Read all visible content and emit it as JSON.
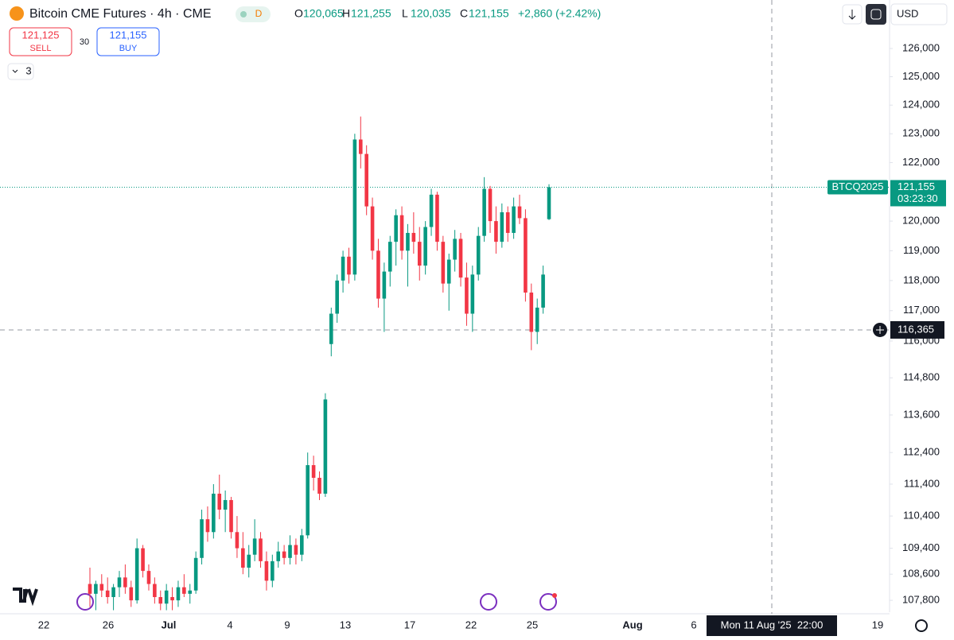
{
  "header": {
    "title": "Bitcoin CME Futures · 4h · CME",
    "badge": "D",
    "ohlc": [
      {
        "key": "O",
        "label": "120,065"
      },
      {
        "key": "H",
        "label": "121,255"
      },
      {
        "key": "L",
        "label": "120,035"
      },
      {
        "key": "C",
        "label": "121,155"
      }
    ],
    "change": "+2,860 (+2.42%)"
  },
  "trade": {
    "sell_price": "121,125",
    "sell": "SELL",
    "spread": "30",
    "buy_price": "121,155",
    "buy": "BUY",
    "indicators": "3"
  },
  "toolbar": {
    "currency": "USD"
  },
  "chart_data": {
    "type": "candlestick",
    "log": true,
    "ylim": [
      107440,
      127740
    ],
    "yticks": [
      {
        "value": 126000,
        "label": "126,000"
      },
      {
        "value": 125000,
        "label": "125,000"
      },
      {
        "value": 124000,
        "label": "124,000"
      },
      {
        "value": 123000,
        "label": "123,000"
      },
      {
        "value": 122000,
        "label": "122,000"
      },
      {
        "value": 120000,
        "label": "120,000"
      },
      {
        "value": 119000,
        "label": "119,000"
      },
      {
        "value": 118000,
        "label": "118,000"
      },
      {
        "value": 117000,
        "label": "117,000"
      },
      {
        "value": 116000,
        "label": "116,000"
      },
      {
        "value": 114800,
        "label": "114,800"
      },
      {
        "value": 113600,
        "label": "113,600"
      },
      {
        "value": 112400,
        "label": "112,400"
      },
      {
        "value": 111400,
        "label": "111,400"
      },
      {
        "value": 110400,
        "label": "110,400"
      },
      {
        "value": 109400,
        "label": "109,400"
      },
      {
        "value": 108600,
        "label": "108,600"
      },
      {
        "value": 107800,
        "label": "107,800"
      }
    ],
    "xticks": [
      "22",
      "26",
      "Jul",
      "4",
      "9",
      "13",
      "17",
      "22",
      "25",
      "Aug",
      "6",
      "19"
    ],
    "up_color": "#089981",
    "down_color": "#f23645",
    "candles": [
      [
        108300,
        108800,
        107600,
        108000
      ],
      [
        108000,
        108400,
        107500,
        108300
      ],
      [
        108300,
        108600,
        107900,
        108100
      ],
      [
        108100,
        108500,
        107700,
        107900
      ],
      [
        107900,
        108300,
        107500,
        108200
      ],
      [
        108200,
        108700,
        107900,
        108500
      ],
      [
        108500,
        108900,
        108000,
        108200
      ],
      [
        108200,
        108400,
        107600,
        107800
      ],
      [
        107800,
        109700,
        107700,
        109400
      ],
      [
        109400,
        109500,
        108500,
        108700
      ],
      [
        108700,
        108900,
        108100,
        108300
      ],
      [
        108300,
        108500,
        107700,
        107900
      ],
      [
        107900,
        108100,
        107500,
        107700
      ],
      [
        107700,
        108300,
        107500,
        108100
      ],
      [
        107900,
        108200,
        107500,
        107800
      ],
      [
        107800,
        108400,
        107600,
        108200
      ],
      [
        108200,
        108600,
        107900,
        108000
      ],
      [
        108000,
        108300,
        107700,
        108100
      ],
      [
        108100,
        109300,
        108000,
        109100
      ],
      [
        109100,
        110600,
        108900,
        110300
      ],
      [
        110300,
        110700,
        109600,
        109900
      ],
      [
        109900,
        111400,
        109700,
        111100
      ],
      [
        111100,
        111700,
        110300,
        110600
      ],
      [
        110600,
        111200,
        109900,
        110900
      ],
      [
        110900,
        111000,
        109700,
        109900
      ],
      [
        109900,
        110400,
        109100,
        109400
      ],
      [
        109400,
        109900,
        108600,
        108800
      ],
      [
        108800,
        109500,
        108500,
        109200
      ],
      [
        109200,
        110300,
        109000,
        109700
      ],
      [
        109700,
        109900,
        108800,
        109000
      ],
      [
        109000,
        109300,
        108100,
        108400
      ],
      [
        108400,
        109200,
        108200,
        109000
      ],
      [
        109000,
        109600,
        108800,
        109300
      ],
      [
        109300,
        109500,
        108900,
        109100
      ],
      [
        109100,
        109800,
        108900,
        109500
      ],
      [
        109500,
        109700,
        108900,
        109200
      ],
      [
        109200,
        110000,
        109000,
        109800
      ],
      [
        109800,
        112400,
        109700,
        112000
      ],
      [
        112000,
        112300,
        111200,
        111600
      ],
      [
        111600,
        111800,
        110900,
        111100
      ],
      [
        111100,
        114300,
        111000,
        114100
      ],
      [
        115900,
        117100,
        115500,
        116900
      ],
      [
        116900,
        118200,
        116600,
        118000
      ],
      [
        118000,
        119000,
        117600,
        118800
      ],
      [
        118800,
        119100,
        117900,
        118200
      ],
      [
        118200,
        123000,
        118000,
        122800
      ],
      [
        122800,
        123600,
        121800,
        122300
      ],
      [
        122300,
        122600,
        120200,
        120500
      ],
      [
        120500,
        120800,
        118700,
        119000
      ],
      [
        119000,
        119400,
        117100,
        117400
      ],
      [
        117400,
        118600,
        116300,
        118300
      ],
      [
        118300,
        119500,
        117800,
        119300
      ],
      [
        119300,
        120400,
        118500,
        120200
      ],
      [
        120200,
        120500,
        118700,
        119000
      ],
      [
        119000,
        119900,
        117800,
        119600
      ],
      [
        119600,
        120300,
        118900,
        119300
      ],
      [
        119300,
        119800,
        118000,
        118500
      ],
      [
        118500,
        120000,
        118200,
        119800
      ],
      [
        119800,
        121100,
        119500,
        120900
      ],
      [
        120900,
        121000,
        119000,
        119300
      ],
      [
        119300,
        119500,
        117600,
        117900
      ],
      [
        117900,
        118900,
        117000,
        118700
      ],
      [
        118700,
        119700,
        118300,
        119400
      ],
      [
        119400,
        119600,
        117800,
        118100
      ],
      [
        118100,
        118600,
        116500,
        116900
      ],
      [
        116900,
        118500,
        116300,
        118200
      ],
      [
        118200,
        119800,
        118000,
        119500
      ],
      [
        119500,
        121500,
        119300,
        121100
      ],
      [
        121100,
        121200,
        119600,
        120000
      ],
      [
        120000,
        120500,
        118900,
        119300
      ],
      [
        119300,
        120600,
        119100,
        120300
      ],
      [
        120300,
        120500,
        119300,
        119600
      ],
      [
        119600,
        120800,
        119400,
        120500
      ],
      [
        120500,
        120900,
        119900,
        120100
      ],
      [
        120100,
        120400,
        117300,
        117600
      ],
      [
        117600,
        117900,
        115700,
        116300
      ],
      [
        116300,
        117400,
        115900,
        117100
      ],
      [
        117100,
        118500,
        116900,
        118200
      ],
      [
        120065,
        121255,
        120035,
        121155
      ]
    ],
    "last_price": {
      "value": 121155,
      "label": "121,155"
    },
    "symbol": "BTCQ2025",
    "countdown": "03:23:30",
    "crosshair": {
      "price": {
        "value": 116365,
        "label": "116,365"
      },
      "time": "Mon 11 Aug '25  22:00"
    }
  }
}
